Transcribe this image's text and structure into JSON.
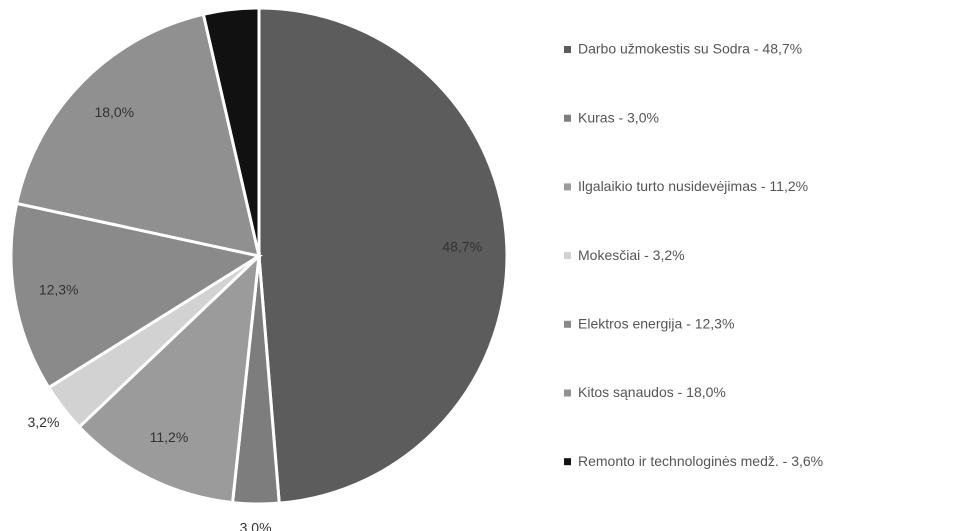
{
  "chart_data": {
    "type": "pie",
    "categories": [
      "Darbo užmokestis su Sodra - 48,7%",
      "Kuras - 3,0%",
      "Ilgalaikio turto nusidevėjimas - 11,2%",
      "Mokesčiai - 3,2%",
      "Elektros energija - 12,3%",
      "Kitos sąnaudos - 18,0%",
      "Remonto ir technologinės medž. - 3,6%"
    ],
    "values": [
      48.7,
      3.0,
      11.2,
      3.2,
      12.3,
      18.0,
      3.6
    ],
    "value_labels": [
      "48,7%",
      "3,0%",
      "11,2%",
      "3,2%",
      "12,3%",
      "18,0%",
      null
    ],
    "colors": [
      "#5c5c5c",
      "#7d7d7d",
      "#9b9b9b",
      "#d2d2d2",
      "#8a8a8a",
      "#909090",
      "#111111"
    ],
    "legend": "right"
  }
}
